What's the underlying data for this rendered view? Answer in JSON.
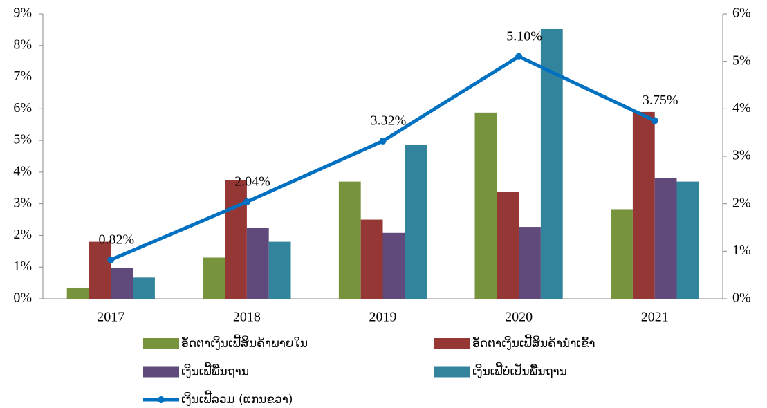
{
  "chart_data": {
    "type": "bar",
    "categories": [
      "2017",
      "2018",
      "2019",
      "2020",
      "2021"
    ],
    "series": [
      {
        "name": "ອັດຕາເງິນເຟີ້ສິນຄ້າພາຍໃນ",
        "color": "#77933c",
        "values": [
          0.35,
          1.3,
          3.7,
          5.88,
          2.83
        ]
      },
      {
        "name": "ອັດຕາເງິນເຟີ້ສິນຄ້ານຳເຂົ້າ",
        "color": "#953735",
        "values": [
          1.8,
          3.75,
          2.5,
          3.37,
          5.9
        ]
      },
      {
        "name": "ເງິນເຟີ້ພື້ນຖານ",
        "color": "#604a7b",
        "values": [
          0.97,
          2.25,
          2.08,
          2.27,
          3.82
        ]
      },
      {
        "name": "ເງິນເຟີ້ບໍ່ເປັນພື້ນຖານ",
        "color": "#31849b",
        "values": [
          0.67,
          1.8,
          4.87,
          8.52,
          3.7
        ]
      },
      {
        "name": "ເງິນເຟີ້ລວມ (ແກນຂວາ)",
        "color": "#0070c0",
        "type": "line",
        "axis": "y2",
        "values": [
          0.82,
          2.04,
          3.32,
          5.1,
          3.75
        ],
        "value_labels": [
          "0.82%",
          "2.04%",
          "3.32%",
          "5.10%",
          "3.75%"
        ]
      }
    ],
    "ylim": [
      0,
      9
    ],
    "yticks": [
      {
        "value": 0,
        "label": "0%"
      },
      {
        "value": 1,
        "label": "1%"
      },
      {
        "value": 2,
        "label": "2%"
      },
      {
        "value": 3,
        "label": "3%"
      },
      {
        "value": 4,
        "label": "4%"
      },
      {
        "value": 5,
        "label": "5%"
      },
      {
        "value": 6,
        "label": "6%"
      },
      {
        "value": 7,
        "label": "7%"
      },
      {
        "value": 8,
        "label": "8%"
      },
      {
        "value": 9,
        "label": "9%"
      }
    ],
    "y2lim": [
      0,
      6
    ],
    "y2ticks": [
      {
        "value": 0,
        "label": "0%"
      },
      {
        "value": 1,
        "label": "1%"
      },
      {
        "value": 2,
        "label": "2%"
      },
      {
        "value": 3,
        "label": "3%"
      },
      {
        "value": 4,
        "label": "4%"
      },
      {
        "value": 5,
        "label": "5%"
      },
      {
        "value": 6,
        "label": "6%"
      }
    ],
    "grid": false,
    "legend": "bottom"
  }
}
